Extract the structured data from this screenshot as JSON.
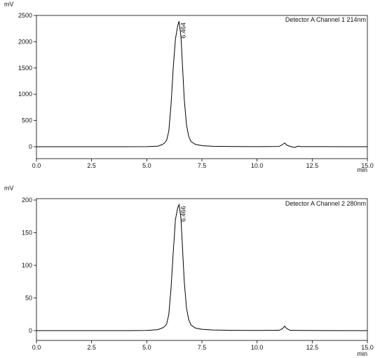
{
  "chart_data": [
    {
      "type": "line",
      "legend": "Detector A Channel 1 214nm",
      "ylabel": "mV",
      "xlabel": "min",
      "xlim": [
        0.0,
        15.0
      ],
      "ylim": [
        -100,
        2500
      ],
      "x_ticks": [
        "0.0",
        "2.5",
        "5.0",
        "7.5",
        "10.0",
        "12.5",
        "15.0"
      ],
      "y_ticks": [
        "0",
        "500",
        "1000",
        "1500",
        "2000",
        "2500"
      ],
      "peak_label": "6.464",
      "series": [
        {
          "x": [
            0,
            1,
            2,
            3,
            4,
            5,
            5.5,
            5.7,
            5.8,
            5.9,
            6.0,
            6.1,
            6.2,
            6.3,
            6.4,
            6.464,
            6.55,
            6.6,
            6.7,
            6.8,
            6.9,
            7.0,
            7.2,
            7.5,
            8.0,
            9.0,
            10.0,
            11.0,
            11.15,
            11.25,
            11.35,
            11.5,
            11.7,
            11.85,
            12.0,
            13.0,
            14.0,
            15.0
          ],
          "y": [
            0,
            0,
            0,
            0,
            0,
            2,
            10,
            40,
            70,
            120,
            300,
            800,
            1500,
            2050,
            2300,
            2390,
            2100,
            1700,
            900,
            420,
            200,
            100,
            45,
            20,
            8,
            3,
            2,
            5,
            40,
            70,
            30,
            5,
            -15,
            10,
            2,
            1,
            0,
            0
          ]
        }
      ]
    },
    {
      "type": "line",
      "legend": "Detector A Channel 2 280nm",
      "ylabel": "mV",
      "xlabel": "min",
      "xlim": [
        0.0,
        15.0
      ],
      "ylim": [
        -5,
        200
      ],
      "x_ticks": [
        "0.0",
        "2.5",
        "5.0",
        "7.5",
        "10.0",
        "12.5",
        "15.0"
      ],
      "y_ticks": [
        "0",
        "50",
        "100",
        "150",
        "200"
      ],
      "peak_label": "6.466",
      "series": [
        {
          "x": [
            0,
            1,
            2,
            3,
            4,
            5,
            5.5,
            5.7,
            5.8,
            5.9,
            6.0,
            6.1,
            6.2,
            6.3,
            6.4,
            6.466,
            6.55,
            6.6,
            6.7,
            6.8,
            6.9,
            7.0,
            7.2,
            7.5,
            8.0,
            9.0,
            10.0,
            11.0,
            11.15,
            11.25,
            11.35,
            11.5,
            12.0,
            13.0,
            14.0,
            15.0
          ],
          "y": [
            0,
            0,
            0,
            0,
            0,
            0.3,
            1.5,
            4,
            6,
            10,
            25,
            65,
            120,
            170,
            188,
            193,
            172,
            140,
            75,
            35,
            17,
            9,
            4,
            2,
            1,
            0.4,
            0.3,
            0.5,
            3,
            7,
            3,
            0.5,
            0.2,
            0.1,
            0,
            0
          ]
        }
      ]
    }
  ]
}
